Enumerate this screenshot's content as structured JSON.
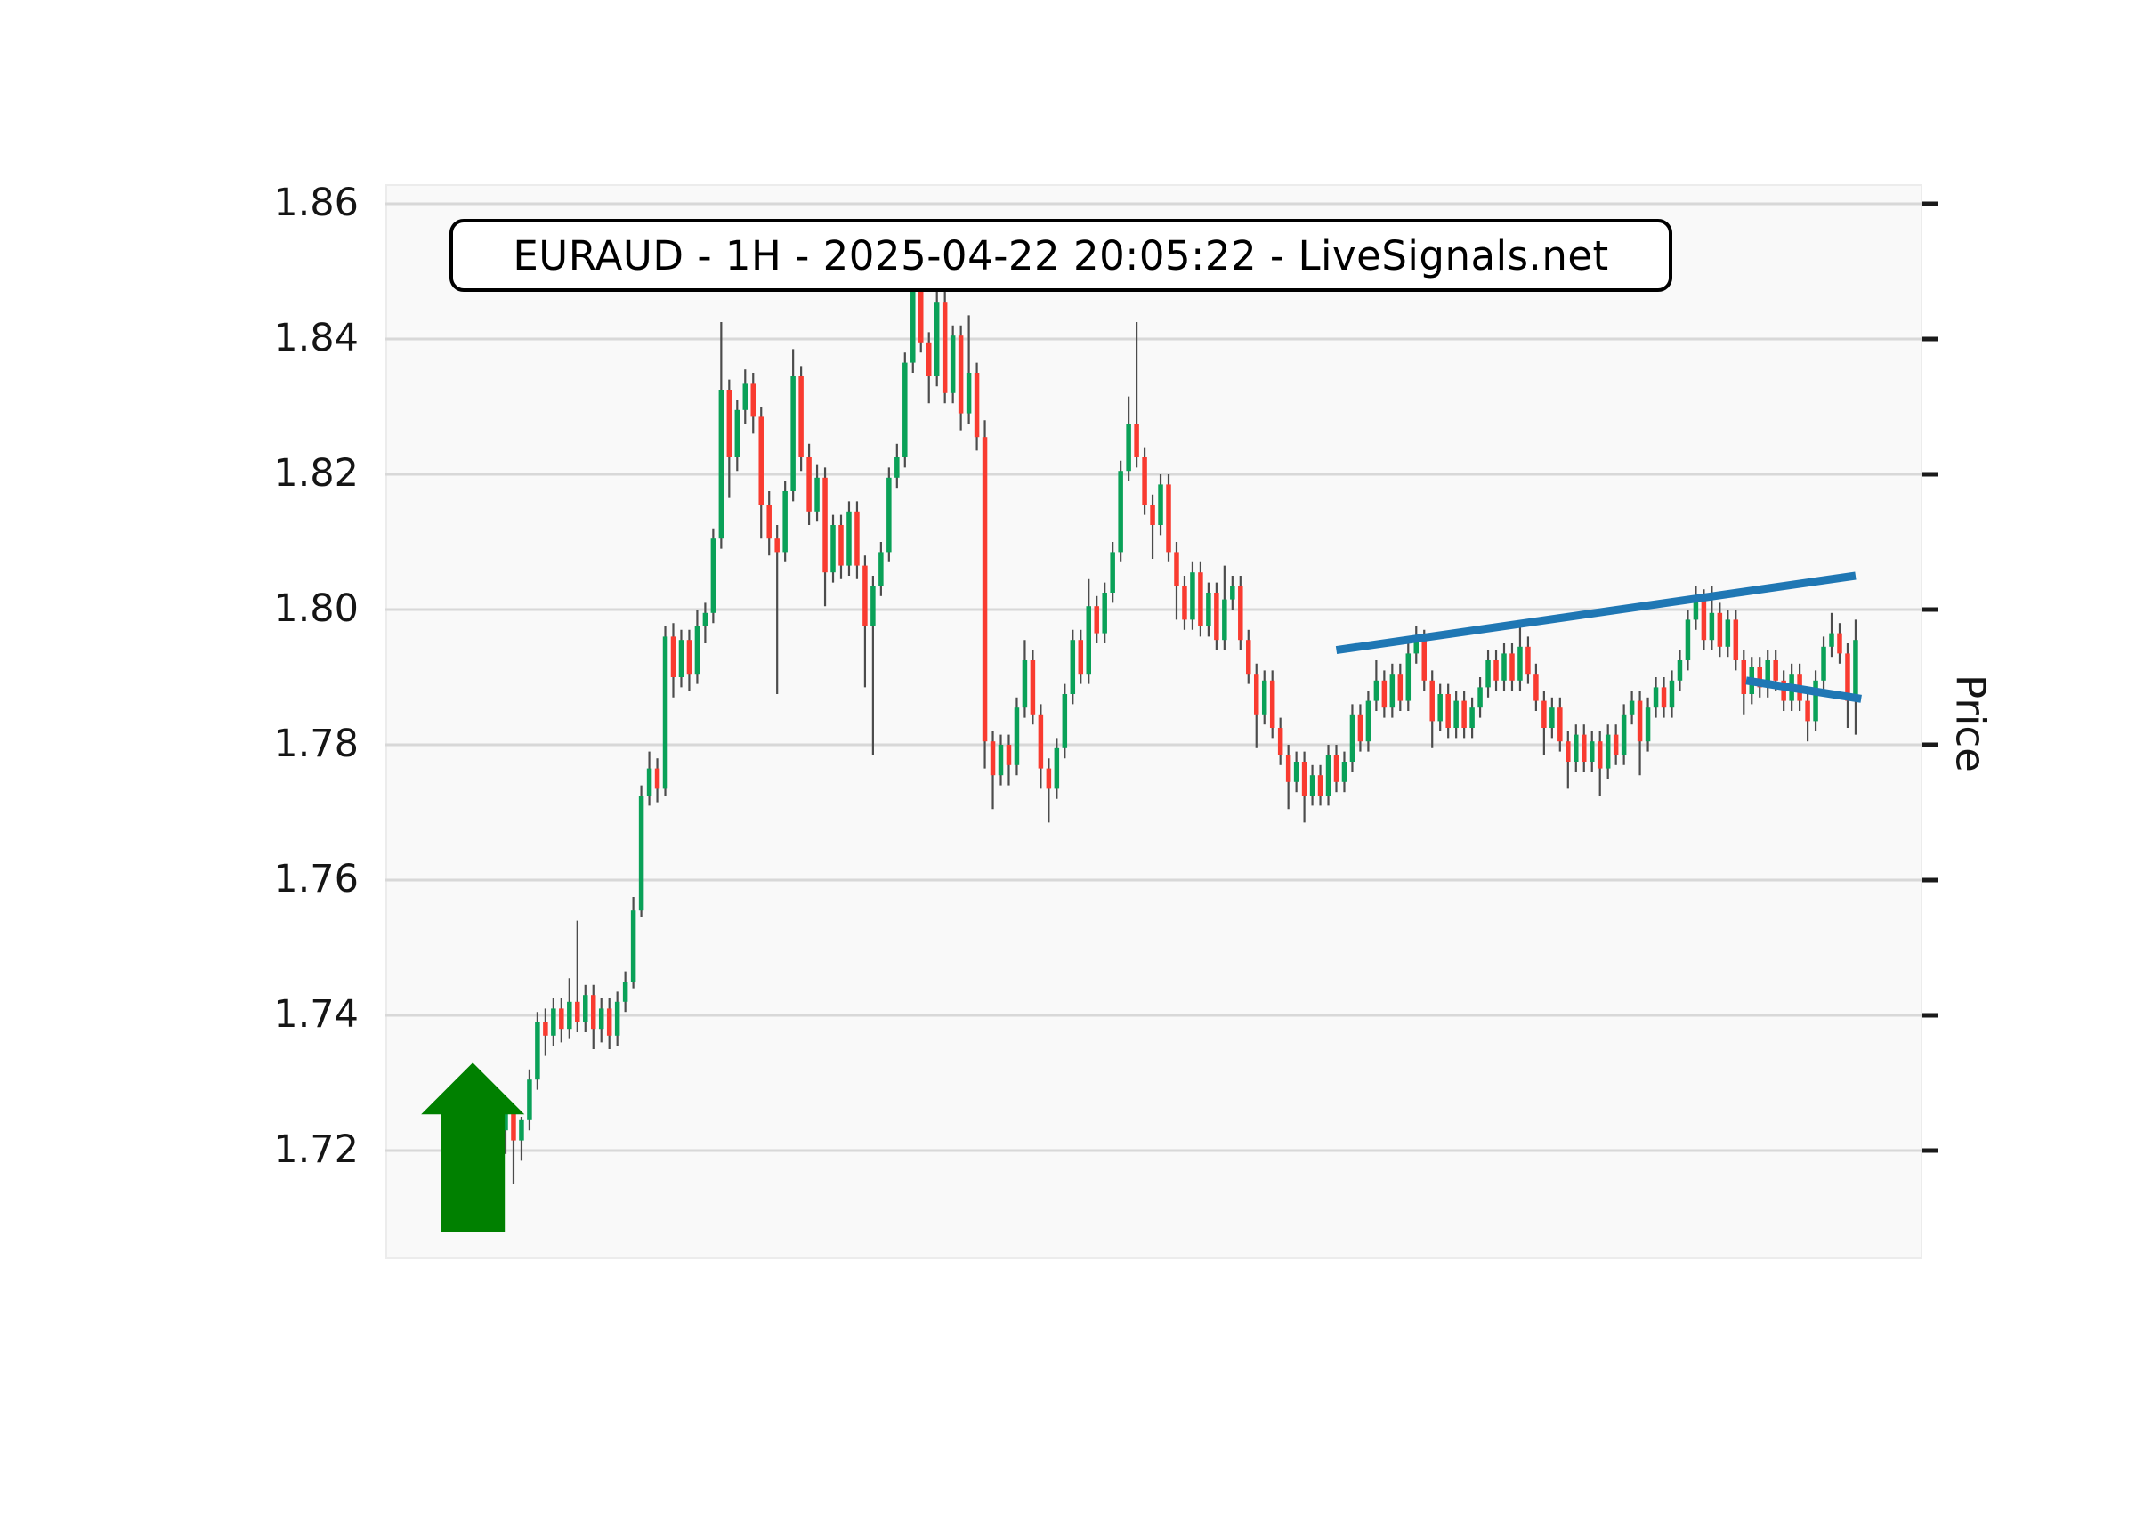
{
  "chart": {
    "title": "EURAUD - 1H - 2025-04-22 20:05:22 - LiveSignals.net",
    "symbol": "EURAUD",
    "timeframe": "1H",
    "timestamp": "2025-04-22 20:05:22",
    "source": "LiveSignals.net",
    "y_axis_label": "Price"
  },
  "chart_data": {
    "type": "candlestick",
    "title": "EURAUD - 1H - 2025-04-22 20:05:22 - LiveSignals.net",
    "ylabel": "Price",
    "y_ticks": [
      1.86,
      1.84,
      1.82,
      1.8,
      1.78,
      1.76,
      1.74,
      1.72
    ],
    "ylim": [
      1.7039,
      1.8629
    ],
    "grid": true,
    "legend": "none",
    "colors": {
      "up": "#0aa158",
      "down": "#f93b30",
      "wick": "#4c4c4c",
      "gridline": "#d8d8d8",
      "plot_bg": "#f9f9f9",
      "trendline": "#1f77b4",
      "arrow": "#008000",
      "tick": "#1a1a1a"
    },
    "candles": [
      [
        1.723,
        1.727,
        1.7195,
        1.7255
      ],
      [
        1.7255,
        1.7265,
        1.715,
        1.7215
      ],
      [
        1.7215,
        1.725,
        1.7185,
        1.7245
      ],
      [
        1.7245,
        1.732,
        1.723,
        1.7305
      ],
      [
        1.7305,
        1.7405,
        1.729,
        1.739
      ],
      [
        1.739,
        1.741,
        1.734,
        1.737
      ],
      [
        1.737,
        1.7425,
        1.7355,
        1.741
      ],
      [
        1.741,
        1.7425,
        1.736,
        1.738
      ],
      [
        1.738,
        1.7455,
        1.7365,
        1.742
      ],
      [
        1.742,
        1.754,
        1.7375,
        1.739
      ],
      [
        1.739,
        1.7445,
        1.7375,
        1.743
      ],
      [
        1.743,
        1.7445,
        1.735,
        1.738
      ],
      [
        1.738,
        1.7425,
        1.736,
        1.741
      ],
      [
        1.741,
        1.7425,
        1.735,
        1.737
      ],
      [
        1.737,
        1.7435,
        1.7355,
        1.742
      ],
      [
        1.742,
        1.7465,
        1.7405,
        1.745
      ],
      [
        1.745,
        1.7575,
        1.744,
        1.7555
      ],
      [
        1.7555,
        1.774,
        1.7545,
        1.7725
      ],
      [
        1.7725,
        1.779,
        1.771,
        1.7765
      ],
      [
        1.7765,
        1.778,
        1.7715,
        1.7735
      ],
      [
        1.7735,
        1.7975,
        1.7725,
        1.796
      ],
      [
        1.796,
        1.798,
        1.787,
        1.79
      ],
      [
        1.79,
        1.797,
        1.7885,
        1.7955
      ],
      [
        1.7955,
        1.797,
        1.788,
        1.7905
      ],
      [
        1.7905,
        1.8,
        1.789,
        1.7975
      ],
      [
        1.7975,
        1.801,
        1.795,
        1.7995
      ],
      [
        1.7995,
        1.812,
        1.798,
        1.8105
      ],
      [
        1.8105,
        1.8425,
        1.809,
        1.8325
      ],
      [
        1.8325,
        1.834,
        1.8165,
        1.8225
      ],
      [
        1.8225,
        1.831,
        1.8205,
        1.8295
      ],
      [
        1.8295,
        1.8355,
        1.8275,
        1.8335
      ],
      [
        1.8335,
        1.835,
        1.826,
        1.8285
      ],
      [
        1.8285,
        1.83,
        1.8105,
        1.8155
      ],
      [
        1.8155,
        1.8175,
        1.808,
        1.8105
      ],
      [
        1.8105,
        1.8125,
        1.7875,
        1.8085
      ],
      [
        1.8085,
        1.819,
        1.807,
        1.8175
      ],
      [
        1.8175,
        1.8385,
        1.816,
        1.8345
      ],
      [
        1.8345,
        1.836,
        1.8205,
        1.8225
      ],
      [
        1.8225,
        1.8245,
        1.8125,
        1.8145
      ],
      [
        1.8145,
        1.8215,
        1.813,
        1.8195
      ],
      [
        1.8195,
        1.821,
        1.8005,
        1.8055
      ],
      [
        1.8055,
        1.814,
        1.804,
        1.8125
      ],
      [
        1.8125,
        1.814,
        1.8045,
        1.8065
      ],
      [
        1.8065,
        1.816,
        1.805,
        1.8145
      ],
      [
        1.8145,
        1.816,
        1.8045,
        1.8065
      ],
      [
        1.8065,
        1.808,
        1.7885,
        1.7975
      ],
      [
        1.7975,
        1.805,
        1.7785,
        1.8035
      ],
      [
        1.8035,
        1.81,
        1.802,
        1.8085
      ],
      [
        1.8085,
        1.821,
        1.807,
        1.8195
      ],
      [
        1.8195,
        1.8245,
        1.818,
        1.8225
      ],
      [
        1.8225,
        1.838,
        1.821,
        1.8365
      ],
      [
        1.8365,
        1.8505,
        1.835,
        1.8485
      ],
      [
        1.8485,
        1.85,
        1.838,
        1.8395
      ],
      [
        1.8395,
        1.841,
        1.8305,
        1.8345
      ],
      [
        1.8345,
        1.8495,
        1.833,
        1.8455
      ],
      [
        1.8455,
        1.847,
        1.8305,
        1.832
      ],
      [
        1.832,
        1.842,
        1.8305,
        1.8405
      ],
      [
        1.8405,
        1.842,
        1.8265,
        1.829
      ],
      [
        1.829,
        1.8435,
        1.8275,
        1.835
      ],
      [
        1.835,
        1.8365,
        1.8235,
        1.8255
      ],
      [
        1.8255,
        1.828,
        1.7765,
        1.7805
      ],
      [
        1.7805,
        1.782,
        1.7705,
        1.7755
      ],
      [
        1.7755,
        1.7815,
        1.774,
        1.78
      ],
      [
        1.78,
        1.7815,
        1.774,
        1.777
      ],
      [
        1.777,
        1.787,
        1.7755,
        1.7855
      ],
      [
        1.7855,
        1.7955,
        1.784,
        1.7925
      ],
      [
        1.7925,
        1.794,
        1.783,
        1.7845
      ],
      [
        1.7845,
        1.786,
        1.7735,
        1.7765
      ],
      [
        1.7765,
        1.778,
        1.7685,
        1.7735
      ],
      [
        1.7735,
        1.781,
        1.772,
        1.7795
      ],
      [
        1.7795,
        1.789,
        1.778,
        1.7875
      ],
      [
        1.7875,
        1.797,
        1.786,
        1.7955
      ],
      [
        1.7955,
        1.797,
        1.789,
        1.7905
      ],
      [
        1.7905,
        1.8045,
        1.789,
        1.8005
      ],
      [
        1.8005,
        1.802,
        1.795,
        1.7965
      ],
      [
        1.7965,
        1.804,
        1.795,
        1.8025
      ],
      [
        1.8025,
        1.81,
        1.801,
        1.8085
      ],
      [
        1.8085,
        1.822,
        1.807,
        1.8205
      ],
      [
        1.8205,
        1.8315,
        1.819,
        1.8275
      ],
      [
        1.8275,
        1.8425,
        1.821,
        1.8225
      ],
      [
        1.8225,
        1.824,
        1.814,
        1.8155
      ],
      [
        1.8155,
        1.817,
        1.8075,
        1.8125
      ],
      [
        1.8125,
        1.82,
        1.811,
        1.8185
      ],
      [
        1.8185,
        1.82,
        1.807,
        1.8085
      ],
      [
        1.8085,
        1.81,
        1.7985,
        1.8035
      ],
      [
        1.8035,
        1.805,
        1.797,
        1.7985
      ],
      [
        1.7985,
        1.807,
        1.797,
        1.8055
      ],
      [
        1.8055,
        1.807,
        1.796,
        1.7975
      ],
      [
        1.7975,
        1.804,
        1.796,
        1.8025
      ],
      [
        1.8025,
        1.804,
        1.794,
        1.7955
      ],
      [
        1.7955,
        1.8065,
        1.794,
        1.8015
      ],
      [
        1.8015,
        1.805,
        1.8,
        1.8035
      ],
      [
        1.8035,
        1.805,
        1.794,
        1.7955
      ],
      [
        1.7955,
        1.797,
        1.789,
        1.7905
      ],
      [
        1.7905,
        1.792,
        1.7795,
        1.7845
      ],
      [
        1.7845,
        1.791,
        1.783,
        1.7895
      ],
      [
        1.7895,
        1.791,
        1.781,
        1.7825
      ],
      [
        1.7825,
        1.784,
        1.777,
        1.7785
      ],
      [
        1.7785,
        1.78,
        1.7705,
        1.7745
      ],
      [
        1.7745,
        1.779,
        1.773,
        1.7775
      ],
      [
        1.7775,
        1.779,
        1.7685,
        1.7725
      ],
      [
        1.7725,
        1.777,
        1.771,
        1.7755
      ],
      [
        1.7755,
        1.777,
        1.771,
        1.7725
      ],
      [
        1.7725,
        1.78,
        1.771,
        1.7785
      ],
      [
        1.7785,
        1.78,
        1.773,
        1.7745
      ],
      [
        1.7745,
        1.779,
        1.773,
        1.7775
      ],
      [
        1.7775,
        1.786,
        1.776,
        1.7845
      ],
      [
        1.7845,
        1.786,
        1.779,
        1.7805
      ],
      [
        1.7805,
        1.788,
        1.779,
        1.7865
      ],
      [
        1.7865,
        1.7925,
        1.785,
        1.7895
      ],
      [
        1.7895,
        1.791,
        1.784,
        1.7855
      ],
      [
        1.7855,
        1.792,
        1.784,
        1.7905
      ],
      [
        1.7905,
        1.792,
        1.785,
        1.7865
      ],
      [
        1.7865,
        1.795,
        1.785,
        1.7935
      ],
      [
        1.7935,
        1.7975,
        1.792,
        1.7955
      ],
      [
        1.7955,
        1.797,
        1.788,
        1.7895
      ],
      [
        1.7895,
        1.791,
        1.7795,
        1.7835
      ],
      [
        1.7835,
        1.789,
        1.782,
        1.7875
      ],
      [
        1.7875,
        1.789,
        1.781,
        1.7825
      ],
      [
        1.7825,
        1.788,
        1.781,
        1.7865
      ],
      [
        1.7865,
        1.788,
        1.781,
        1.7825
      ],
      [
        1.7825,
        1.787,
        1.781,
        1.7855
      ],
      [
        1.7855,
        1.79,
        1.784,
        1.7885
      ],
      [
        1.7885,
        1.794,
        1.787,
        1.7925
      ],
      [
        1.7925,
        1.794,
        1.788,
        1.7895
      ],
      [
        1.7895,
        1.795,
        1.788,
        1.7935
      ],
      [
        1.7935,
        1.795,
        1.788,
        1.7895
      ],
      [
        1.7895,
        1.7975,
        1.788,
        1.7945
      ],
      [
        1.7945,
        1.796,
        1.789,
        1.7905
      ],
      [
        1.7905,
        1.792,
        1.785,
        1.7865
      ],
      [
        1.7865,
        1.788,
        1.7785,
        1.7825
      ],
      [
        1.7825,
        1.787,
        1.781,
        1.7855
      ],
      [
        1.7855,
        1.787,
        1.779,
        1.7805
      ],
      [
        1.7805,
        1.782,
        1.7735,
        1.7775
      ],
      [
        1.7775,
        1.783,
        1.776,
        1.7815
      ],
      [
        1.7815,
        1.783,
        1.776,
        1.7775
      ],
      [
        1.7775,
        1.782,
        1.776,
        1.7805
      ],
      [
        1.7805,
        1.782,
        1.7725,
        1.7765
      ],
      [
        1.7765,
        1.783,
        1.775,
        1.7815
      ],
      [
        1.7815,
        1.783,
        1.777,
        1.7785
      ],
      [
        1.7785,
        1.786,
        1.777,
        1.7845
      ],
      [
        1.7845,
        1.788,
        1.783,
        1.7865
      ],
      [
        1.7865,
        1.788,
        1.7755,
        1.7805
      ],
      [
        1.7805,
        1.787,
        1.779,
        1.7855
      ],
      [
        1.7855,
        1.79,
        1.784,
        1.7885
      ],
      [
        1.7885,
        1.79,
        1.784,
        1.7855
      ],
      [
        1.7855,
        1.791,
        1.784,
        1.7895
      ],
      [
        1.7895,
        1.794,
        1.788,
        1.7925
      ],
      [
        1.7925,
        1.8,
        1.791,
        1.7985
      ],
      [
        1.7985,
        1.8035,
        1.797,
        1.8015
      ],
      [
        1.8015,
        1.803,
        1.794,
        1.7955
      ],
      [
        1.7955,
        1.8035,
        1.794,
        1.7995
      ],
      [
        1.7995,
        1.801,
        1.793,
        1.7945
      ],
      [
        1.7945,
        1.8,
        1.793,
        1.7985
      ],
      [
        1.7985,
        1.8,
        1.791,
        1.7925
      ],
      [
        1.7925,
        1.794,
        1.7845,
        1.7875
      ],
      [
        1.7875,
        1.793,
        1.786,
        1.7915
      ],
      [
        1.7915,
        1.793,
        1.787,
        1.7885
      ],
      [
        1.7885,
        1.794,
        1.787,
        1.7925
      ],
      [
        1.7925,
        1.794,
        1.788,
        1.7895
      ],
      [
        1.7895,
        1.791,
        1.785,
        1.7865
      ],
      [
        1.7865,
        1.792,
        1.785,
        1.7905
      ],
      [
        1.7905,
        1.792,
        1.785,
        1.7865
      ],
      [
        1.7865,
        1.788,
        1.7805,
        1.7835
      ],
      [
        1.7835,
        1.791,
        1.782,
        1.7895
      ],
      [
        1.7895,
        1.796,
        1.788,
        1.7945
      ],
      [
        1.7945,
        1.7995,
        1.793,
        1.7965
      ],
      [
        1.7965,
        1.798,
        1.792,
        1.7935
      ],
      [
        1.7935,
        1.795,
        1.7825,
        1.7865
      ],
      [
        1.7865,
        1.7985,
        1.7815,
        1.7955
      ]
    ],
    "annotations": {
      "up_arrow": {
        "type": "up-arrow",
        "candle_index": -4.1,
        "tip_price": 1.733,
        "base_price": 1.708
      },
      "trendlines": [
        {
          "name": "upper-trendline",
          "from_candle": 104,
          "from_price": 1.794,
          "to_candle": 169,
          "to_price": 1.805
        },
        {
          "name": "lower-trendline",
          "from_candle": 155.3,
          "from_price": 1.7895,
          "to_candle": 169.7,
          "to_price": 1.7868
        }
      ]
    }
  }
}
